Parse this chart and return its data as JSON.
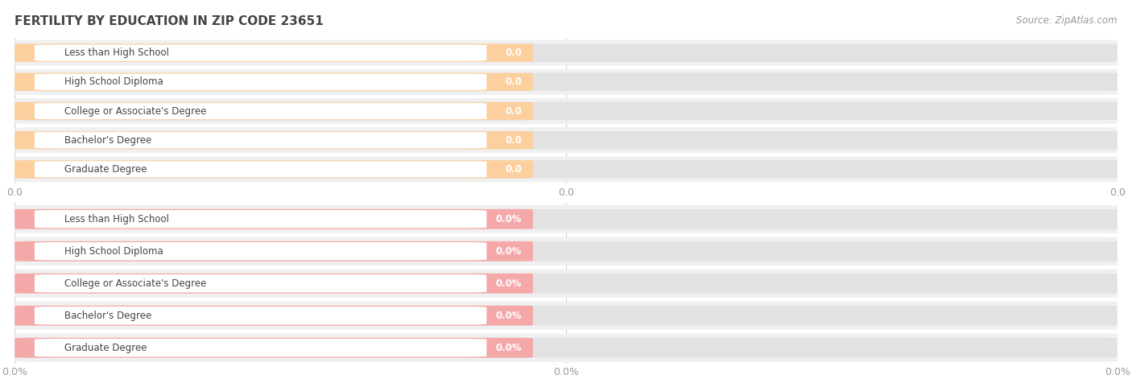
{
  "title": "FERTILITY BY EDUCATION IN ZIP CODE 23651",
  "source": "Source: ZipAtlas.com",
  "categories": [
    "Less than High School",
    "High School Diploma",
    "College or Associate's Degree",
    "Bachelor's Degree",
    "Graduate Degree"
  ],
  "top_values": [
    0.0,
    0.0,
    0.0,
    0.0,
    0.0
  ],
  "bottom_values": [
    0.0,
    0.0,
    0.0,
    0.0,
    0.0
  ],
  "top_bar_color": "#FCCF9E",
  "top_dot_color": "#F5A85A",
  "bottom_bar_color": "#F4A8A8",
  "bottom_dot_color": "#E87070",
  "row_bg_color": "#F0F0F0",
  "bar_bg_color": "#E2E2E2",
  "label_bg_color": "#FFFFFF",
  "title_color": "#444444",
  "source_color": "#999999",
  "label_color": "#444444",
  "value_color": "#FFFFFF",
  "tick_color": "#999999",
  "grid_color": "#CCCCCC",
  "fig_width": 14.06,
  "fig_height": 4.76,
  "dpi": 100
}
